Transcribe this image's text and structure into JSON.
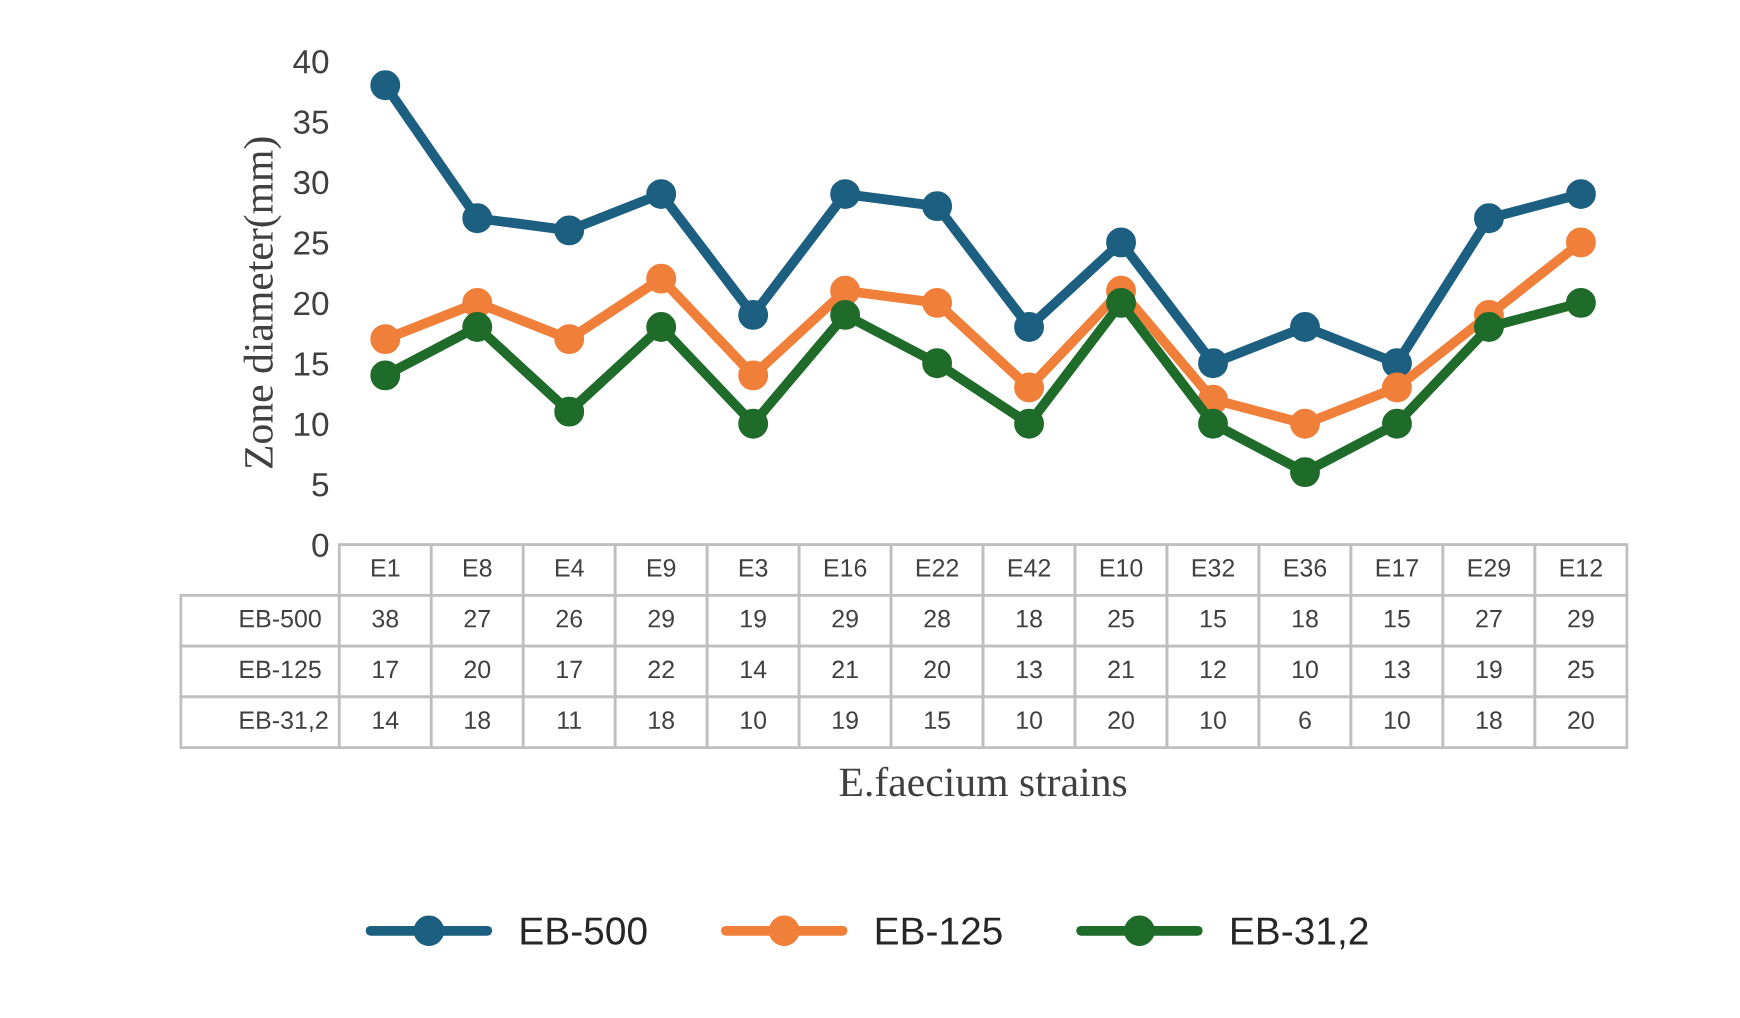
{
  "chart_data": {
    "type": "line",
    "xlabel": "E.faecium strains",
    "ylabel": "Zone diameter(mm)",
    "categories": [
      "E1",
      "E8",
      "E4",
      "E9",
      "E3",
      "E16",
      "E22",
      "E42",
      "E10",
      "E32",
      "E36",
      "E17",
      "E29",
      "E12"
    ],
    "series": [
      {
        "name": "EB-500",
        "color": "#1d5f80",
        "values": [
          38,
          27,
          26,
          29,
          19,
          29,
          28,
          18,
          25,
          15,
          18,
          15,
          27,
          29
        ]
      },
      {
        "name": "EB-125",
        "color": "#f07f3a",
        "values": [
          17,
          20,
          17,
          22,
          14,
          21,
          20,
          13,
          21,
          12,
          10,
          13,
          19,
          25
        ]
      },
      {
        "name": "EB-31,2",
        "color": "#1f6b2a",
        "values": [
          14,
          18,
          11,
          18,
          10,
          19,
          15,
          10,
          20,
          10,
          6,
          10,
          18,
          20
        ]
      }
    ],
    "ylim": [
      0,
      40
    ],
    "yticks": [
      0,
      5,
      10,
      15,
      20,
      25,
      30,
      35,
      40
    ],
    "data_labels": true,
    "legend": "bottom",
    "marker": "circle",
    "line_style": "solid",
    "grid": false
  }
}
